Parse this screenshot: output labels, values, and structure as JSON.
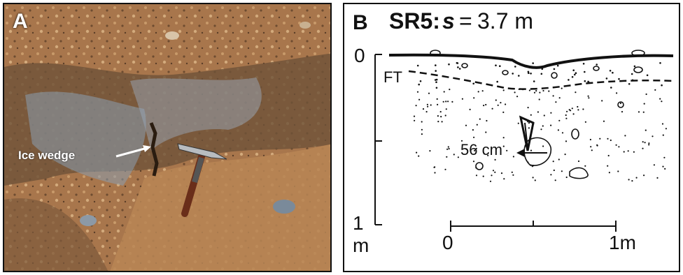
{
  "panel_a": {
    "label": "A",
    "annotation": "Ice wedge",
    "colors": {
      "sediment": "#a8764c",
      "ice": "#8a9eb0",
      "shadow": "#3b2a1a"
    }
  },
  "panel_b": {
    "label": "B",
    "site": "SR5:",
    "s_symbol": "s",
    "equals": "=",
    "s_value": "3.7 m",
    "depth_top": "0",
    "depth_bottom": "1",
    "depth_unit": "m",
    "frost_table_label": "FT",
    "wedge_depth_label": "56 cm",
    "scale_start": "0",
    "scale_end": "1m"
  }
}
